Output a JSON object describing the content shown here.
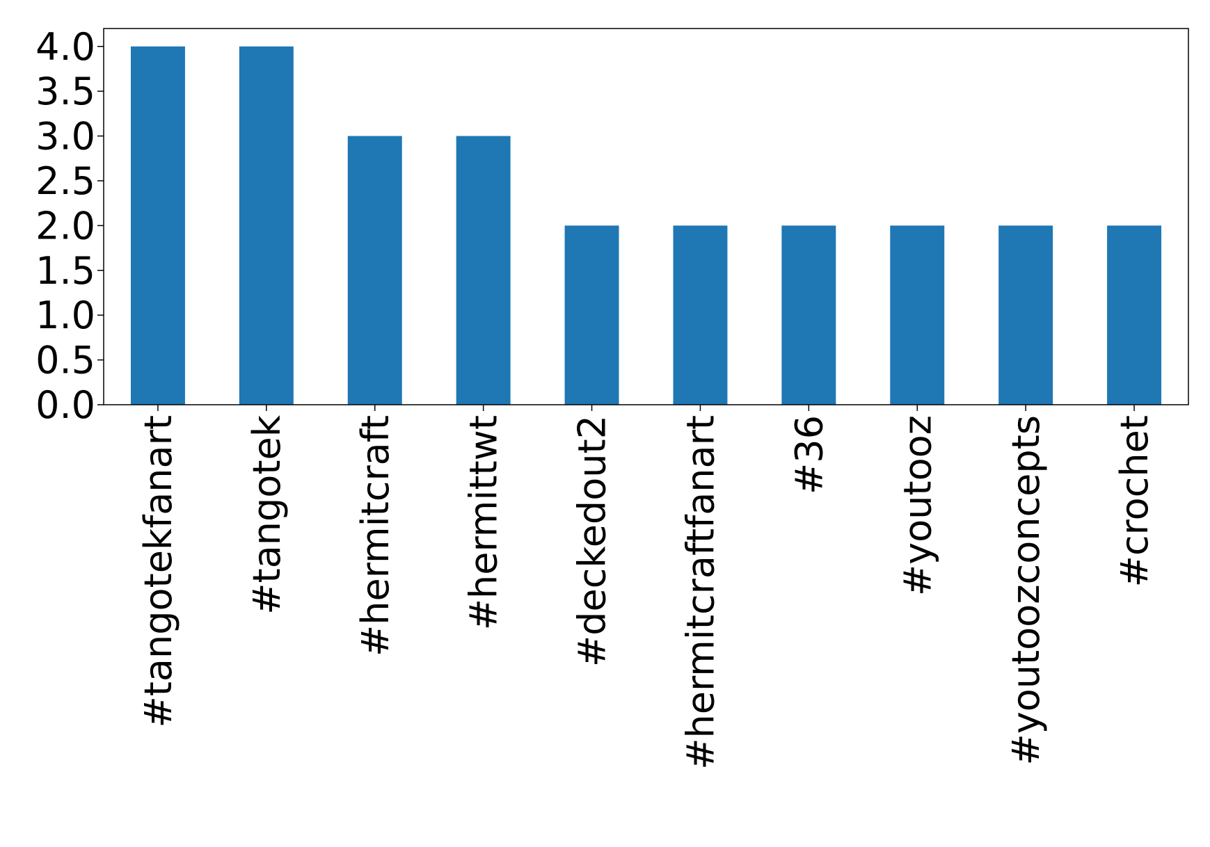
{
  "chart_data": {
    "type": "bar",
    "categories": [
      "#tangotekfanart",
      "#tangotek",
      "#hermitcraft",
      "#hermittwt",
      "#deckedout2",
      "#hermitcraftfanart",
      "#36",
      "#youtooz",
      "#youtoozconcepts",
      "#crochet"
    ],
    "values": [
      4,
      4,
      3,
      3,
      2,
      2,
      2,
      2,
      2,
      2
    ],
    "color": "#1f77b4",
    "ylim": [
      0,
      4.2
    ],
    "yticks": [
      {
        "value": 0,
        "label": "0.0"
      },
      {
        "value": 0.5,
        "label": "0.5"
      },
      {
        "value": 1,
        "label": "1.0"
      },
      {
        "value": 1.5,
        "label": "1.5"
      },
      {
        "value": 2,
        "label": "2.0"
      },
      {
        "value": 2.5,
        "label": "2.5"
      },
      {
        "value": 3,
        "label": "3.0"
      },
      {
        "value": 3.5,
        "label": "3.5"
      },
      {
        "value": 4,
        "label": "4.0"
      }
    ]
  }
}
